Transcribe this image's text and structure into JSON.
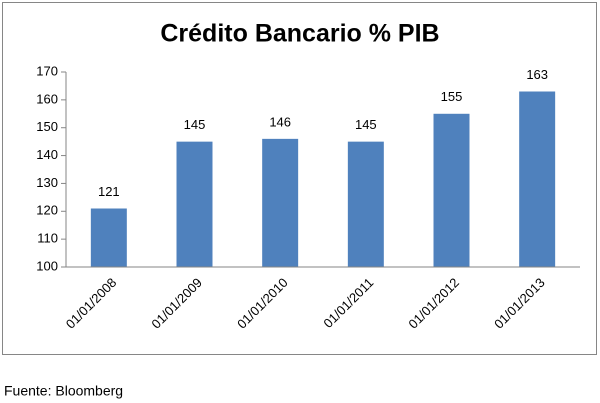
{
  "chart_data": {
    "type": "bar",
    "title": "Crédito Bancario % PIB",
    "categories": [
      "01/01/2008",
      "01/01/2009",
      "01/01/2010",
      "01/01/2011",
      "01/01/2012",
      "01/01/2013"
    ],
    "values": [
      121,
      145,
      146,
      145,
      155,
      163
    ],
    "color": "#4f81bd",
    "ylim": [
      100,
      170
    ],
    "yticks": [
      100,
      110,
      120,
      130,
      140,
      150,
      160,
      170
    ],
    "grid": false
  },
  "footer": "Fuente: Bloomberg"
}
